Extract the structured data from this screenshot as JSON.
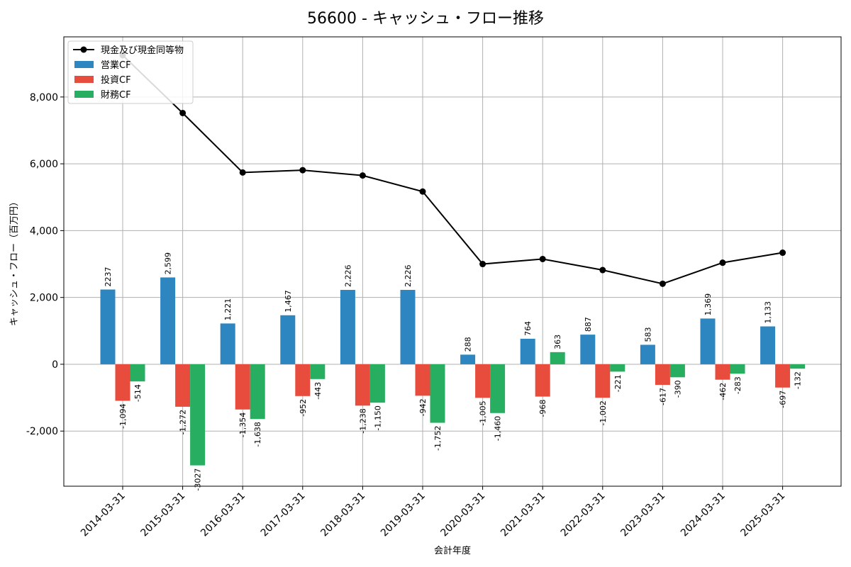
{
  "chart_data": {
    "type": "bar",
    "title": "56600 - キャッシュ・フロー推移",
    "xlabel": "会計年度",
    "ylabel": "キャッシュ・フロー（百万円）",
    "ylim": [
      -3650,
      9800
    ],
    "yticks": [
      -2000,
      0,
      2000,
      4000,
      6000,
      8000
    ],
    "ytick_labels": [
      "-2,000",
      "0",
      "2,000",
      "4,000",
      "6,000",
      "8,000"
    ],
    "grid": true,
    "legend_position": "top-left",
    "categories": [
      "2014-03-31",
      "2015-03-31",
      "2016-03-31",
      "2017-03-31",
      "2018-03-31",
      "2019-03-31",
      "2020-03-31",
      "2021-03-31",
      "2022-03-31",
      "2023-03-31",
      "2024-03-31",
      "2025-03-31"
    ],
    "series": [
      {
        "name": "営業CF",
        "type": "bar",
        "color": "#2e86c1",
        "values": [
          2237,
          2599,
          1221,
          1467,
          2226,
          2226,
          288,
          764,
          887,
          583,
          1369,
          1133
        ],
        "labels": [
          "2237",
          "2,599",
          "1,221",
          "1,467",
          "2,226",
          "2,226",
          "288",
          "764",
          "887",
          "583",
          "1,369",
          "1,133"
        ]
      },
      {
        "name": "投資CF",
        "type": "bar",
        "color": "#e74c3c",
        "values": [
          -1094,
          -1272,
          -1354,
          -952,
          -1238,
          -942,
          -1005,
          -968,
          -1002,
          -617,
          -462,
          -697
        ],
        "labels": [
          "-1,094",
          "-1,272",
          "-1,354",
          "-952",
          "-1,238",
          "-942",
          "-1,005",
          "-968",
          "-1,002",
          "-617",
          "-462",
          "-697"
        ]
      },
      {
        "name": "財務CF",
        "type": "bar",
        "color": "#27ae60",
        "values": [
          -514,
          -3027,
          -1638,
          -443,
          -1150,
          -1752,
          -1460,
          363,
          -221,
          -390,
          -283,
          -132
        ],
        "labels": [
          "-514",
          "-3027",
          "-1,638",
          "-443",
          "-1,150",
          "-1,752",
          "-1,460",
          "363",
          "-221",
          "-390",
          "-283",
          "-132"
        ]
      },
      {
        "name": "現金及び現金同等物",
        "type": "line",
        "color": "#000000",
        "values": [
          9250,
          7520,
          5740,
          5810,
          5650,
          5170,
          3000,
          3150,
          2820,
          2410,
          3040,
          3340
        ]
      }
    ]
  }
}
